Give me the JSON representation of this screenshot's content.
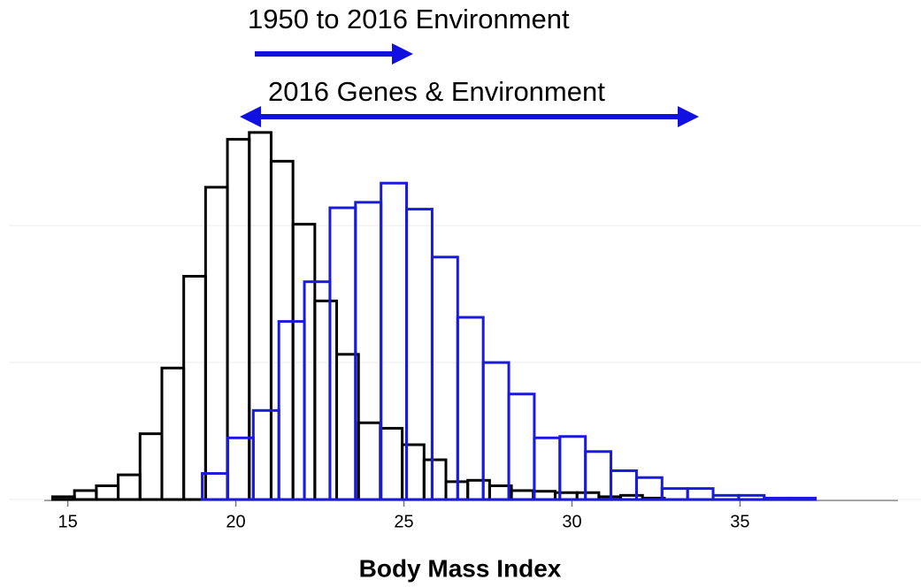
{
  "chart_data": {
    "type": "histogram",
    "xlabel": "Body Mass Index",
    "annotations": [
      "1950 to 2016 Environment",
      "2016 Genes & Environment"
    ],
    "xlim": [
      14.3,
      39.7
    ],
    "xticks": [
      15,
      20,
      25,
      30,
      35
    ],
    "ylim": [
      0,
      2.75
    ],
    "yticks": [
      0,
      1,
      2
    ],
    "grid": true,
    "series": [
      {
        "color": "#000000",
        "bins": [
          14.55,
          15.2,
          15.85,
          16.5,
          17.15,
          17.8,
          18.45,
          19.1,
          19.75,
          20.4,
          21.05,
          21.7,
          22.35,
          23.0,
          23.65,
          24.3,
          24.95,
          25.6,
          26.25,
          26.9,
          27.55,
          28.2,
          28.85,
          29.5,
          30.15,
          30.8,
          31.45,
          32.1,
          32.75
        ],
        "values": [
          0.02,
          0.065,
          0.1,
          0.18,
          0.48,
          0.96,
          1.63,
          2.28,
          2.63,
          2.68,
          2.47,
          2.01,
          1.45,
          1.06,
          0.56,
          0.52,
          0.4,
          0.29,
          0.13,
          0.14,
          0.1,
          0.065,
          0.06,
          0.05,
          0.05,
          0.02,
          0.03,
          0.01
        ]
      },
      {
        "color": "#1a1adc",
        "bins": [
          19.0,
          19.76,
          20.52,
          21.28,
          22.04,
          22.8,
          23.56,
          24.32,
          25.08,
          25.84,
          26.6,
          27.36,
          28.12,
          28.88,
          29.64,
          30.4,
          31.16,
          31.92,
          32.68,
          33.44,
          34.2,
          34.96,
          35.72,
          36.48,
          37.24
        ],
        "values": [
          0.19,
          0.45,
          0.65,
          1.3,
          1.59,
          2.13,
          2.17,
          2.31,
          2.12,
          1.77,
          1.33,
          1.0,
          0.77,
          0.45,
          0.46,
          0.35,
          0.21,
          0.16,
          0.08,
          0.08,
          0.03,
          0.03,
          0.01,
          0.01
        ]
      }
    ]
  }
}
